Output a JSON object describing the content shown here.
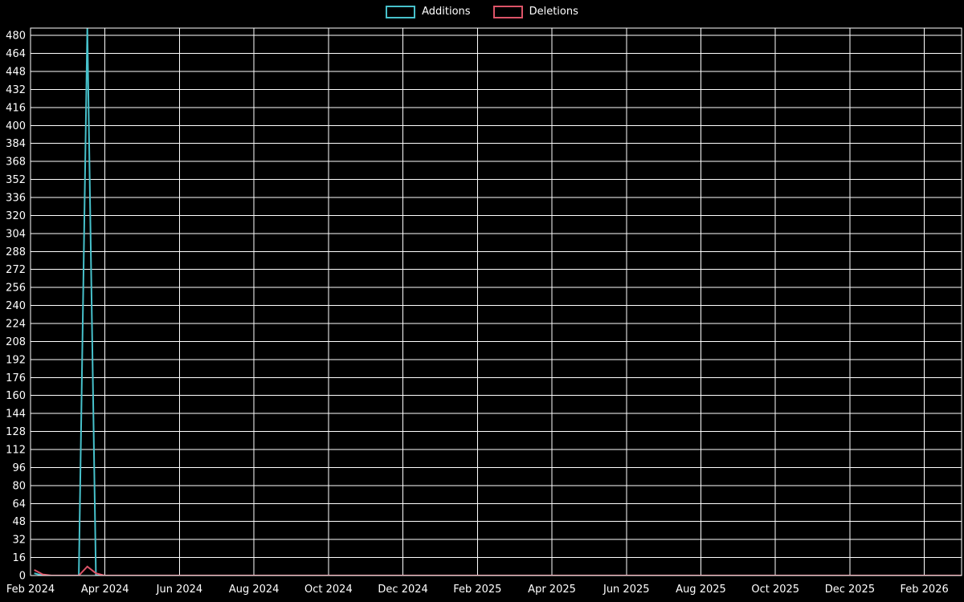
{
  "chart_data": {
    "type": "line",
    "background": "#000000",
    "grid": true,
    "grid_color": "#ffffff",
    "text_color": "#ffffff",
    "legend_position": "top-center",
    "x_range": [
      "2024-02-01",
      "2026-03-01"
    ],
    "ylim": [
      0,
      486.5
    ],
    "yticks": [
      0,
      16,
      32,
      48,
      64,
      80,
      96,
      112,
      128,
      144,
      160,
      176,
      192,
      208,
      224,
      240,
      256,
      272,
      288,
      304,
      320,
      336,
      352,
      368,
      384,
      400,
      416,
      432,
      448,
      464,
      480
    ],
    "xticks": [
      {
        "m": 0,
        "label": "Feb 2024"
      },
      {
        "m": 2,
        "label": "Apr 2024"
      },
      {
        "m": 4,
        "label": "Jun 2024"
      },
      {
        "m": 6,
        "label": "Aug 2024"
      },
      {
        "m": 8,
        "label": "Oct 2024"
      },
      {
        "m": 10,
        "label": "Dec 2024"
      },
      {
        "m": 12,
        "label": "Feb 2025"
      },
      {
        "m": 14,
        "label": "Apr 2025"
      },
      {
        "m": 16,
        "label": "Jun 2025"
      },
      {
        "m": 18,
        "label": "Aug 2025"
      },
      {
        "m": 20,
        "label": "Oct 2025"
      },
      {
        "m": 22,
        "label": "Dec 2025"
      },
      {
        "m": 24,
        "label": "Feb 2026"
      }
    ],
    "series": [
      {
        "name": "Additions",
        "color": "#47c1cb",
        "points": [
          [
            "2024-02-04",
            2
          ],
          [
            "2024-02-11",
            0
          ],
          [
            "2024-03-10",
            0
          ],
          [
            "2024-03-17",
            487
          ],
          [
            "2024-03-24",
            0
          ],
          [
            "2026-03-01",
            0
          ]
        ]
      },
      {
        "name": "Deletions",
        "color": "#dd5468",
        "points": [
          [
            "2024-02-04",
            5
          ],
          [
            "2024-02-11",
            1
          ],
          [
            "2024-02-18",
            0
          ],
          [
            "2024-03-10",
            0
          ],
          [
            "2024-03-17",
            8
          ],
          [
            "2024-03-24",
            2
          ],
          [
            "2024-03-31",
            0
          ],
          [
            "2026-03-01",
            0
          ]
        ]
      }
    ]
  }
}
